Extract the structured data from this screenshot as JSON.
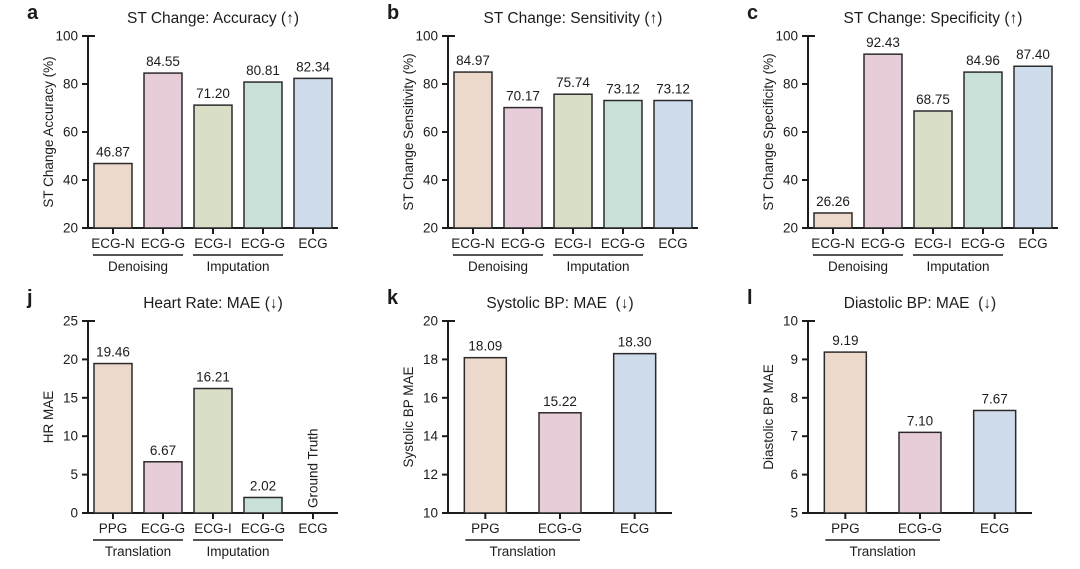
{
  "figure_title": "ECG generation downstream evaluation bar charts",
  "style": {
    "background": "#ffffff",
    "axis_color": "#1c1c1c",
    "text_color": "#1c1c1c",
    "bar_stroke": "#2b2b2b",
    "palette": {
      "tan": "#ecd9cb",
      "pink": "#e7ccda",
      "sage": "#d8dfc6",
      "mint": "#c9e1d9",
      "blue": "#cfdcec"
    }
  },
  "chart_data": [
    {
      "letter": "a",
      "type": "bar",
      "title": "ST Change: Accuracy (↑)",
      "ylabel": "ST Change Accuracy (%)",
      "ylim": [
        20,
        100
      ],
      "ystep": 20,
      "categories": [
        "ECG-N",
        "ECG-G",
        "ECG-I",
        "ECG-G",
        "ECG"
      ],
      "values": [
        46.87,
        84.55,
        71.2,
        80.81,
        82.34
      ],
      "value_labels": [
        "46.87",
        "84.55",
        "71.20",
        "80.81",
        "82.34"
      ],
      "bar_colors": [
        "#ecd9cb",
        "#e7ccda",
        "#d8dfc6",
        "#c9e1d9",
        "#cfdcec"
      ],
      "groups": [
        {
          "label": "Denoising",
          "start": 0,
          "end": 1
        },
        {
          "label": "Imputation",
          "start": 2,
          "end": 3
        }
      ]
    },
    {
      "letter": "b",
      "type": "bar",
      "title": "ST Change: Sensitivity (↑)",
      "ylabel": "ST Change Sensitivity (%)",
      "ylim": [
        20,
        100
      ],
      "ystep": 20,
      "categories": [
        "ECG-N",
        "ECG-G",
        "ECG-I",
        "ECG-G",
        "ECG"
      ],
      "values": [
        84.97,
        70.17,
        75.74,
        73.12,
        73.12
      ],
      "value_labels": [
        "84.97",
        "70.17",
        "75.74",
        "73.12",
        "73.12"
      ],
      "bar_colors": [
        "#ecd9cb",
        "#e7ccda",
        "#d8dfc6",
        "#c9e1d9",
        "#cfdcec"
      ],
      "groups": [
        {
          "label": "Denoising",
          "start": 0,
          "end": 1
        },
        {
          "label": "Imputation",
          "start": 2,
          "end": 3
        }
      ]
    },
    {
      "letter": "c",
      "type": "bar",
      "title": "ST Change: Specificity (↑)",
      "ylabel": "ST Change Specificity (%)",
      "ylim": [
        20,
        100
      ],
      "ystep": 20,
      "categories": [
        "ECG-N",
        "ECG-G",
        "ECG-I",
        "ECG-G",
        "ECG"
      ],
      "values": [
        26.26,
        92.43,
        68.75,
        84.96,
        87.4
      ],
      "value_labels": [
        "26.26",
        "92.43",
        "68.75",
        "84.96",
        "87.40"
      ],
      "bar_colors": [
        "#ecd9cb",
        "#e7ccda",
        "#d8dfc6",
        "#c9e1d9",
        "#cfdcec"
      ],
      "groups": [
        {
          "label": "Denoising",
          "start": 0,
          "end": 1
        },
        {
          "label": "Imputation",
          "start": 2,
          "end": 3
        }
      ]
    },
    {
      "letter": "j",
      "type": "bar",
      "title": "Heart Rate: MAE (↓)",
      "ylabel": "HR MAE",
      "ylim": [
        0,
        25
      ],
      "ystep": 5,
      "categories": [
        "PPG",
        "ECG-G",
        "ECG-I",
        "ECG-G",
        "ECG"
      ],
      "values": [
        19.46,
        6.67,
        16.21,
        2.02,
        null
      ],
      "value_labels": [
        "19.46",
        "6.67",
        "16.21",
        "2.02",
        ""
      ],
      "bar_colors": [
        "#ecd9cb",
        "#e7ccda",
        "#d8dfc6",
        "#c9e1d9",
        "#cfdcec"
      ],
      "rotated_annotation": {
        "index": 4,
        "text": "Ground Truth"
      },
      "groups": [
        {
          "label": "Translation",
          "start": 0,
          "end": 1
        },
        {
          "label": "Imputation",
          "start": 2,
          "end": 3
        }
      ]
    },
    {
      "letter": "k",
      "type": "bar",
      "title": "Systolic BP: MAE  (↓)",
      "ylabel": "Systolic BP MAE",
      "ylim": [
        10,
        20
      ],
      "ystep": 2,
      "categories": [
        "PPG",
        "ECG-G",
        "ECG"
      ],
      "values": [
        18.09,
        15.22,
        18.3
      ],
      "value_labels": [
        "18.09",
        "15.22",
        "18.30"
      ],
      "bar_colors": [
        "#ecd9cb",
        "#e7ccda",
        "#cfdcec"
      ],
      "groups": [
        {
          "label": "Translation",
          "start": 0,
          "end": 1
        }
      ]
    },
    {
      "letter": "l",
      "type": "bar",
      "title": "Diastolic BP: MAE  (↓)",
      "ylabel": "Diastolic BP MAE",
      "ylim": [
        5,
        10
      ],
      "ystep": 1,
      "categories": [
        "PPG",
        "ECG-G",
        "ECG"
      ],
      "values": [
        9.19,
        7.1,
        7.67
      ],
      "value_labels": [
        "9.19",
        "7.10",
        "7.67"
      ],
      "bar_colors": [
        "#ecd9cb",
        "#e7ccda",
        "#cfdcec"
      ],
      "groups": [
        {
          "label": "Translation",
          "start": 0,
          "end": 1
        }
      ]
    }
  ]
}
